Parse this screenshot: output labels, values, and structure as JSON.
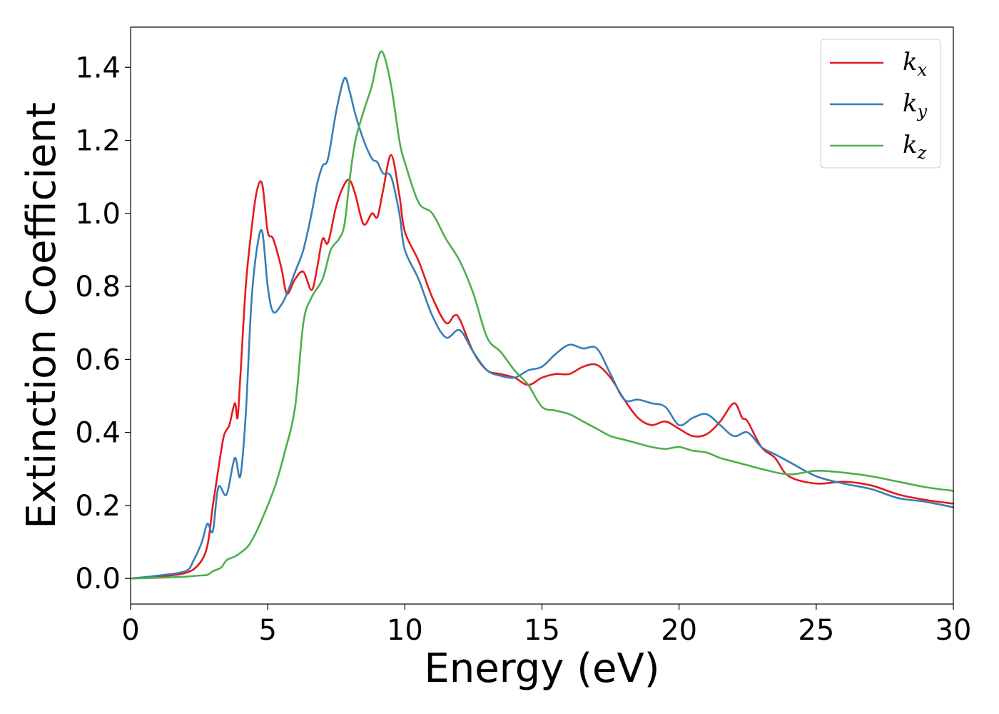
{
  "chart_data": {
    "type": "line",
    "xlabel": "Energy (eV)",
    "ylabel": "Extinction Coefficient",
    "xlim": [
      0,
      30
    ],
    "ylim": [
      -0.07,
      1.51
    ],
    "xticks": [
      0,
      5,
      10,
      15,
      20,
      25,
      30
    ],
    "xtick_labels": [
      "0",
      "5",
      "10",
      "15",
      "20",
      "25",
      "30"
    ],
    "yticks": [
      0.0,
      0.2,
      0.4,
      0.6,
      0.8,
      1.0,
      1.2,
      1.4
    ],
    "ytick_labels": [
      "0.0",
      "0.2",
      "0.4",
      "0.6",
      "0.8",
      "1.0",
      "1.2",
      "1.4"
    ],
    "grid": false,
    "legend_position": "top-right",
    "series": [
      {
        "name": "k_x",
        "label_base": "k",
        "label_sub": "x",
        "color": "#e41a1c",
        "x": [
          0,
          1,
          2,
          2.5,
          2.8,
          3.0,
          3.2,
          3.4,
          3.6,
          3.8,
          3.9,
          4.0,
          4.2,
          4.4,
          4.6,
          4.8,
          5.0,
          5.2,
          5.5,
          5.7,
          6.0,
          6.3,
          6.6,
          6.8,
          7.0,
          7.2,
          7.5,
          7.8,
          8.0,
          8.2,
          8.5,
          8.8,
          9.0,
          9.2,
          9.5,
          9.8,
          10.0,
          10.5,
          11.0,
          11.5,
          11.8,
          12.0,
          12.5,
          13.0,
          13.5,
          14.0,
          14.5,
          15.0,
          15.5,
          16.0,
          16.5,
          17.0,
          17.5,
          18.0,
          18.5,
          19.0,
          19.5,
          20.0,
          20.5,
          21.0,
          21.5,
          22.0,
          22.3,
          22.5,
          23.0,
          23.5,
          24.0,
          25.0,
          26.0,
          27.0,
          28.0,
          29.0,
          30.0
        ],
        "y": [
          0.0,
          0.005,
          0.015,
          0.04,
          0.09,
          0.2,
          0.3,
          0.39,
          0.42,
          0.48,
          0.44,
          0.55,
          0.8,
          0.95,
          1.06,
          1.08,
          0.95,
          0.93,
          0.85,
          0.78,
          0.82,
          0.84,
          0.79,
          0.85,
          0.93,
          0.92,
          1.02,
          1.08,
          1.09,
          1.05,
          0.97,
          1.0,
          0.99,
          1.06,
          1.16,
          1.05,
          0.95,
          0.87,
          0.77,
          0.7,
          0.72,
          0.71,
          0.62,
          0.57,
          0.56,
          0.55,
          0.53,
          0.55,
          0.56,
          0.56,
          0.58,
          0.585,
          0.55,
          0.49,
          0.44,
          0.42,
          0.43,
          0.41,
          0.39,
          0.395,
          0.43,
          0.48,
          0.44,
          0.43,
          0.36,
          0.33,
          0.28,
          0.26,
          0.265,
          0.255,
          0.23,
          0.215,
          0.205
        ]
      },
      {
        "name": "k_y",
        "label_base": "k",
        "label_sub": "y",
        "color": "#377eb8",
        "x": [
          0,
          1,
          2,
          2.3,
          2.6,
          2.8,
          3.0,
          3.2,
          3.5,
          3.8,
          4.0,
          4.2,
          4.4,
          4.6,
          4.8,
          5.0,
          5.2,
          5.5,
          5.7,
          6.0,
          6.3,
          6.6,
          6.8,
          7.0,
          7.2,
          7.5,
          7.8,
          8.0,
          8.2,
          8.5,
          8.8,
          9.0,
          9.2,
          9.5,
          9.8,
          10.0,
          10.5,
          11.0,
          11.5,
          12.0,
          12.5,
          13.0,
          13.5,
          14.0,
          14.5,
          15.0,
          15.5,
          16.0,
          16.5,
          17.0,
          17.5,
          18.0,
          18.5,
          19.0,
          19.5,
          20.0,
          20.5,
          21.0,
          21.5,
          22.0,
          22.5,
          23.0,
          23.5,
          24.0,
          25.0,
          26.0,
          27.0,
          28.0,
          29.0,
          30.0
        ],
        "y": [
          0.0,
          0.008,
          0.02,
          0.05,
          0.1,
          0.15,
          0.13,
          0.25,
          0.23,
          0.33,
          0.28,
          0.45,
          0.75,
          0.9,
          0.95,
          0.8,
          0.73,
          0.75,
          0.78,
          0.84,
          0.9,
          1.0,
          1.08,
          1.13,
          1.15,
          1.28,
          1.37,
          1.33,
          1.27,
          1.2,
          1.15,
          1.14,
          1.11,
          1.1,
          1.0,
          0.9,
          0.82,
          0.72,
          0.66,
          0.68,
          0.62,
          0.57,
          0.555,
          0.55,
          0.57,
          0.58,
          0.615,
          0.64,
          0.63,
          0.63,
          0.56,
          0.49,
          0.49,
          0.48,
          0.47,
          0.42,
          0.44,
          0.45,
          0.42,
          0.39,
          0.4,
          0.36,
          0.34,
          0.32,
          0.28,
          0.26,
          0.245,
          0.22,
          0.21,
          0.195
        ]
      },
      {
        "name": "k_z",
        "label_base": "k",
        "label_sub": "z",
        "color": "#4daf4a",
        "x": [
          0,
          1,
          2,
          2.5,
          2.8,
          3.0,
          3.3,
          3.5,
          3.8,
          4.0,
          4.3,
          4.6,
          5.0,
          5.3,
          5.6,
          6.0,
          6.3,
          6.6,
          7.0,
          7.3,
          7.6,
          7.8,
          8.0,
          8.2,
          8.5,
          8.8,
          9.0,
          9.2,
          9.5,
          9.8,
          10.0,
          10.5,
          11.0,
          11.5,
          12.0,
          12.5,
          13.0,
          13.5,
          14.0,
          14.5,
          15.0,
          15.5,
          16.0,
          16.5,
          17.0,
          17.5,
          18.0,
          18.5,
          19.0,
          19.5,
          20.0,
          20.5,
          21.0,
          21.5,
          22.0,
          22.5,
          23.0,
          24.0,
          25.0,
          26.0,
          27.0,
          28.0,
          29.0,
          30.0
        ],
        "y": [
          0.0,
          0.002,
          0.005,
          0.008,
          0.01,
          0.02,
          0.03,
          0.05,
          0.06,
          0.07,
          0.09,
          0.13,
          0.2,
          0.26,
          0.34,
          0.47,
          0.7,
          0.77,
          0.82,
          0.9,
          0.93,
          0.97,
          1.1,
          1.2,
          1.28,
          1.35,
          1.42,
          1.44,
          1.35,
          1.2,
          1.14,
          1.03,
          1.0,
          0.93,
          0.87,
          0.78,
          0.66,
          0.62,
          0.57,
          0.53,
          0.47,
          0.46,
          0.45,
          0.43,
          0.41,
          0.39,
          0.38,
          0.37,
          0.36,
          0.355,
          0.36,
          0.35,
          0.345,
          0.33,
          0.32,
          0.31,
          0.3,
          0.285,
          0.295,
          0.29,
          0.28,
          0.265,
          0.25,
          0.24
        ]
      }
    ]
  }
}
